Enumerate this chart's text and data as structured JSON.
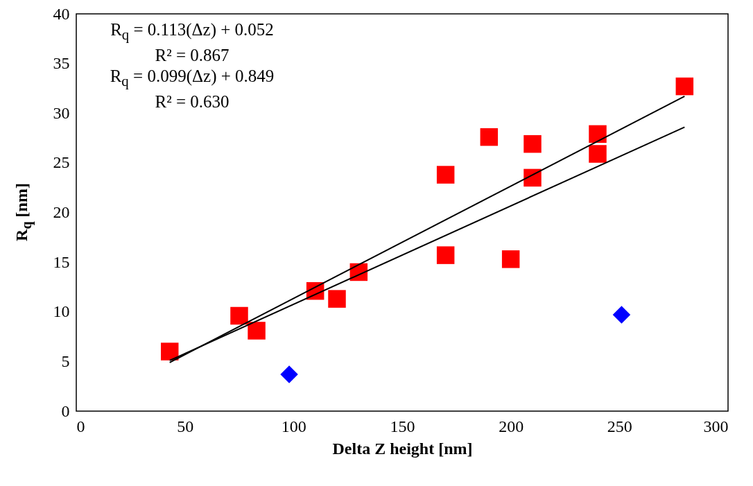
{
  "chart_data": {
    "type": "scatter",
    "xlabel": "Delta Z height [nm]",
    "ylabel": "R$_{q}$ [nm]",
    "xlim": [
      0,
      300
    ],
    "xticks": [
      0,
      50,
      100,
      150,
      200,
      250,
      300
    ],
    "ylim": [
      0,
      40
    ],
    "yticks": [
      0,
      5,
      10,
      15,
      20,
      25,
      30,
      35,
      40
    ],
    "annotations": [
      "R$_{q}$ = 0.113(Δz) + 0.052",
      "R² = 0.867",
      "R$_{q}$ = 0.099(Δz) + 0.849",
      "R² = 0.630"
    ],
    "series": [
      {
        "marker": "square",
        "color": "#ff0000",
        "x": [
          43,
          75,
          83,
          110,
          120,
          130,
          170,
          170,
          190,
          200,
          210,
          210,
          240,
          240,
          280
        ],
        "values": [
          6.0,
          9.6,
          8.1,
          12.1,
          11.3,
          14.0,
          23.8,
          15.7,
          27.6,
          15.3,
          26.9,
          23.5,
          27.9,
          25.9,
          32.7
        ]
      },
      {
        "marker": "diamond",
        "color": "#0000ff",
        "x": [
          98,
          251
        ],
        "values": [
          3.7,
          9.7
        ]
      },
      {
        "type": "line",
        "color": "#000000",
        "x": [
          43,
          280
        ],
        "values": [
          4.9,
          31.7
        ]
      },
      {
        "type": "line",
        "color": "#000000",
        "x": [
          43,
          280
        ],
        "values": [
          5.1,
          28.6
        ]
      }
    ]
  }
}
